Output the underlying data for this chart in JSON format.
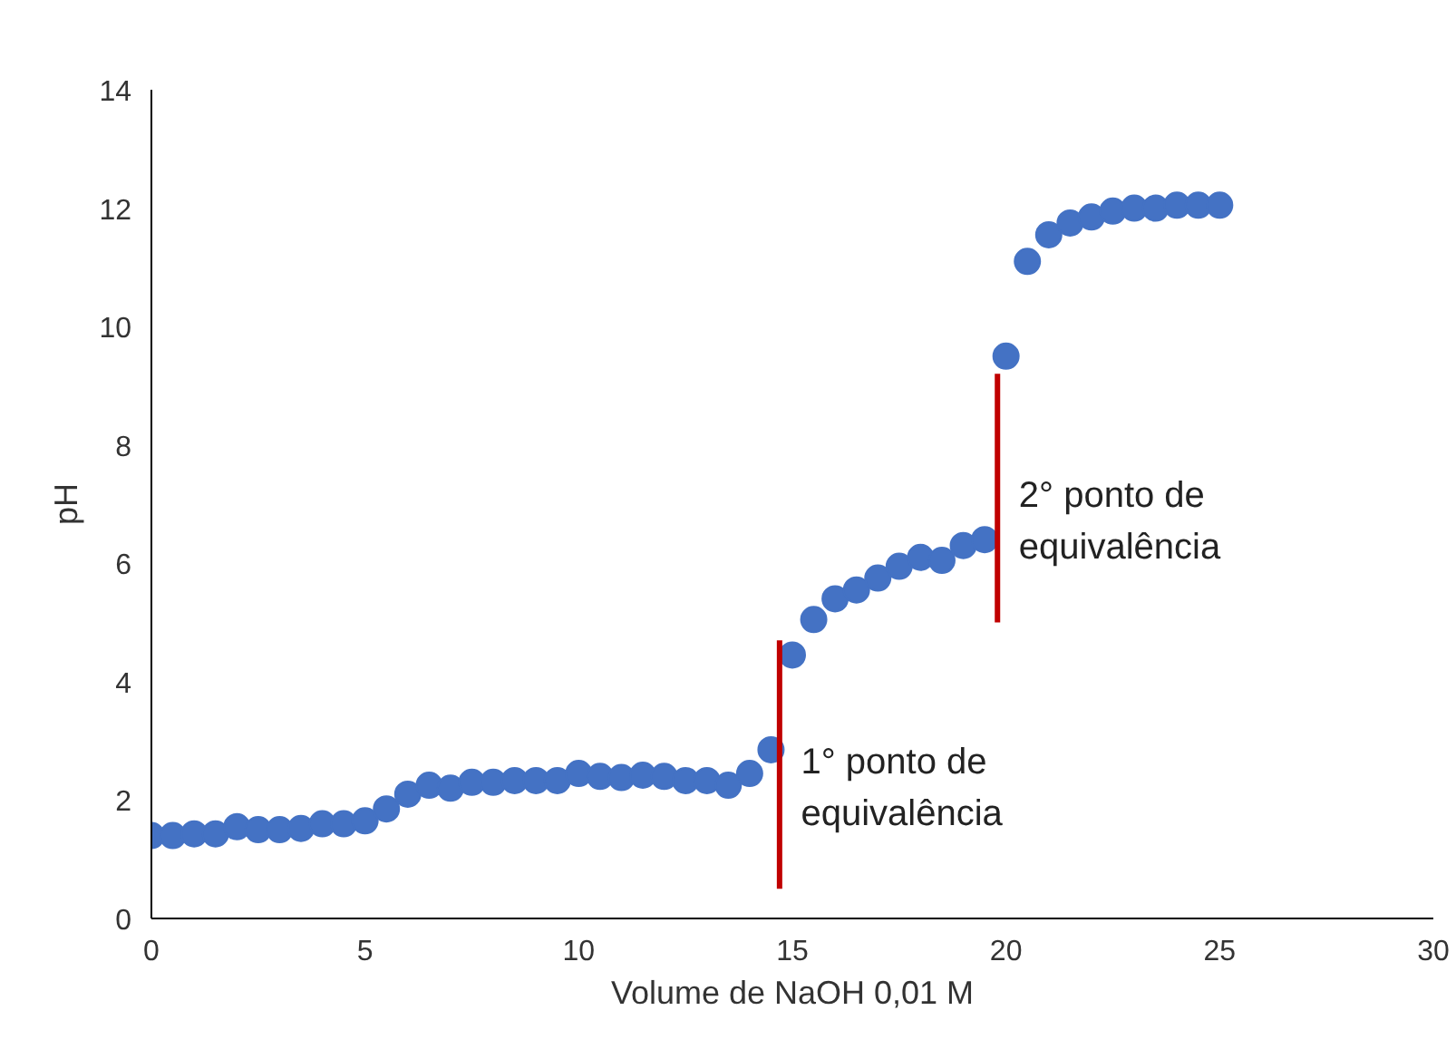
{
  "chart_data": {
    "type": "scatter",
    "xlabel": "Volume de NaOH 0,01 M",
    "ylabel": "pH",
    "xlim": [
      0,
      30
    ],
    "ylim": [
      0,
      14
    ],
    "xticks": [
      0,
      5,
      10,
      15,
      20,
      25,
      30
    ],
    "yticks": [
      0,
      2,
      4,
      6,
      8,
      10,
      12,
      14
    ],
    "grid": false,
    "series": [
      {
        "color": "#4472c4",
        "marker": "circle",
        "x": [
          0,
          0.5,
          1,
          1.5,
          2,
          2.5,
          3,
          3.5,
          4,
          4.5,
          5,
          5.5,
          6,
          6.5,
          7,
          7.5,
          8,
          8.5,
          9,
          9.5,
          10,
          10.5,
          11,
          11.5,
          12,
          12.5,
          13,
          13.5,
          14,
          14.5,
          15,
          15.5,
          16,
          16.5,
          17,
          17.5,
          18,
          18.5,
          19,
          19.5,
          20,
          20.5,
          21,
          21.5,
          22,
          22.5,
          23,
          23.5,
          24,
          24.5,
          25
        ],
        "values": [
          1.4,
          1.4,
          1.43,
          1.43,
          1.55,
          1.5,
          1.5,
          1.52,
          1.6,
          1.6,
          1.65,
          1.85,
          2.1,
          2.25,
          2.2,
          2.3,
          2.3,
          2.33,
          2.33,
          2.33,
          2.45,
          2.4,
          2.38,
          2.42,
          2.4,
          2.33,
          2.33,
          2.25,
          2.45,
          2.85,
          4.45,
          5.05,
          5.4,
          5.55,
          5.75,
          5.95,
          6.1,
          6.05,
          6.3,
          6.4,
          9.5,
          11.1,
          11.55,
          11.75,
          11.85,
          11.95,
          12.0,
          12.0,
          12.05,
          12.05,
          12.05
        ]
      },
      {
        "type": "line",
        "color": "#c00000",
        "x": [
          14.7,
          14.7
        ],
        "values": [
          0.5,
          4.7
        ]
      },
      {
        "type": "line",
        "color": "#c00000",
        "x": [
          19.8,
          19.8
        ],
        "values": [
          5.0,
          9.2
        ]
      }
    ],
    "annotations": [
      "1° ponto de equivalência",
      "2° ponto de equivalência"
    ]
  }
}
